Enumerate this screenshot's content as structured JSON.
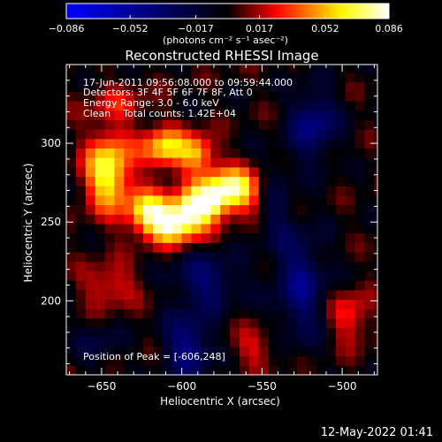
{
  "chart_data": {
    "type": "heatmap",
    "title": "Reconstructed RHESSI Image",
    "xlabel": "Heliocentric X (arcsec)",
    "ylabel": "Heliocentric Y (arcsec)",
    "xlim": [
      -672,
      -478
    ],
    "ylim": [
      153,
      350
    ],
    "x_ticks": [
      {
        "value": -650,
        "label": "−650"
      },
      {
        "value": -600,
        "label": "−600"
      },
      {
        "value": -550,
        "label": "−550"
      },
      {
        "value": -500,
        "label": "−500"
      }
    ],
    "y_ticks": [
      {
        "value": 200,
        "label": "200"
      },
      {
        "value": 250,
        "label": "250"
      },
      {
        "value": 300,
        "label": "300"
      }
    ],
    "colorbar": {
      "min": -0.086,
      "max": 0.086,
      "ticks": [
        {
          "value": -0.086,
          "label": "−0.086"
        },
        {
          "value": -0.052,
          "label": "−0.052"
        },
        {
          "value": -0.017,
          "label": "−0.017"
        },
        {
          "value": 0.017,
          "label": "0.017"
        },
        {
          "value": 0.052,
          "label": "0.052"
        },
        {
          "value": 0.086,
          "label": "0.086"
        }
      ],
      "units_label": "(photons cm⁻² s⁻¹ asec⁻²)",
      "colors": [
        "#0000ff",
        "#000000",
        "#ff0000",
        "#ffff00",
        "#ffffff"
      ]
    },
    "annotations": [
      "17-Jun-2011 09:56:08.000 to 09:59:44.000",
      "Detectors: 3F 4F 5F 6F 7F 8F, Att 0",
      "Energy Range: 3.0 - 6.0 keV",
      "Clean    Total counts: 1.42E+04"
    ],
    "peak_label": "Position of Peak = [-606,248]",
    "peak": [
      -606,
      248
    ],
    "sources": [
      {
        "x": -605,
        "y": 250,
        "value": 0.086,
        "sx": 13,
        "sy": 9
      },
      {
        "x": -570,
        "y": 271,
        "value": 0.082,
        "sx": 14,
        "sy": 9
      },
      {
        "x": -588,
        "y": 261,
        "value": 0.07,
        "sx": 10,
        "sy": 7
      },
      {
        "x": -646,
        "y": 282,
        "value": 0.072,
        "sx": 10,
        "sy": 17
      },
      {
        "x": -611,
        "y": 297,
        "value": 0.06,
        "sx": 10,
        "sy": 9
      },
      {
        "x": -590,
        "y": 294,
        "value": 0.05,
        "sx": 8,
        "sy": 8
      },
      {
        "x": -622,
        "y": 258,
        "value": 0.05,
        "sx": 9,
        "sy": 9
      },
      {
        "x": -645,
        "y": 210,
        "value": 0.028,
        "sx": 12,
        "sy": 10
      },
      {
        "x": -495,
        "y": 190,
        "value": 0.03,
        "sx": 9,
        "sy": 12
      },
      {
        "x": -555,
        "y": 170,
        "value": 0.022,
        "sx": 10,
        "sy": 9
      },
      {
        "x": -640,
        "y": 325,
        "value": 0.02,
        "sx": 14,
        "sy": 9
      },
      {
        "x": -585,
        "y": 213,
        "value": -0.035,
        "sx": 15,
        "sy": 12
      },
      {
        "x": -596,
        "y": 172,
        "value": -0.045,
        "sx": 10,
        "sy": 14
      },
      {
        "x": -526,
        "y": 210,
        "value": -0.04,
        "sx": 11,
        "sy": 24
      },
      {
        "x": -518,
        "y": 312,
        "value": -0.042,
        "sx": 10,
        "sy": 16
      },
      {
        "x": -542,
        "y": 264,
        "value": -0.022,
        "sx": 8,
        "sy": 20
      },
      {
        "x": -652,
        "y": 172,
        "value": -0.018,
        "sx": 10,
        "sy": 10
      }
    ]
  },
  "footer": {
    "timestamp": "12-May-2022 01:41"
  }
}
